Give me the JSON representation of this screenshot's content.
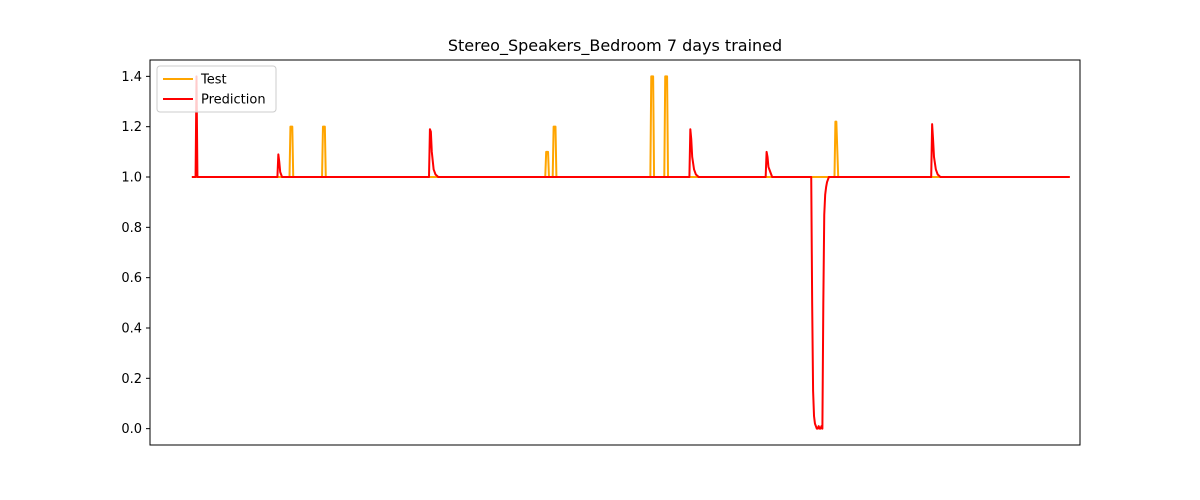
{
  "chart_data": {
    "type": "line",
    "title": "Stereo_Speakers_Bedroom 7 days trained",
    "xlabel": "",
    "ylabel": "",
    "xlim": [
      0,
      1000
    ],
    "ylim": [
      -0.065,
      1.465
    ],
    "yticks": [
      0.0,
      0.2,
      0.4,
      0.6,
      0.8,
      1.0,
      1.2,
      1.4
    ],
    "ytick_labels": [
      "0.0",
      "0.2",
      "0.4",
      "0.6",
      "0.8",
      "1.0",
      "1.2",
      "1.4"
    ],
    "grid": false,
    "legend_position": "top-left",
    "series": [
      {
        "name": "Test",
        "color": "#ffa500",
        "x": [
          45,
          150,
          151,
          153,
          154,
          155,
          185,
          186,
          188,
          189,
          190,
          425,
          426,
          428,
          429,
          430,
          433,
          434,
          436,
          437,
          438,
          538,
          539,
          541,
          542,
          543,
          553,
          554,
          556,
          557,
          558,
          734,
          735,
          736,
          737,
          738,
          740,
          741,
          742,
          989
        ],
        "y": [
          1.0,
          1.0,
          1.2,
          1.2,
          1.0,
          1.0,
          1.0,
          1.2,
          1.2,
          1.0,
          1.0,
          1.0,
          1.1,
          1.1,
          1.0,
          1.0,
          1.0,
          1.2,
          1.2,
          1.0,
          1.0,
          1.0,
          1.4,
          1.4,
          1.0,
          1.0,
          1.0,
          1.4,
          1.4,
          1.0,
          1.0,
          1.0,
          1.0,
          1.0,
          1.22,
          1.22,
          1.0,
          1.0,
          1.0,
          1.0
        ]
      },
      {
        "name": "Prediction",
        "color": "#ff0000",
        "x": [
          45,
          49,
          50,
          51,
          52,
          53,
          137,
          138,
          139,
          140,
          142,
          144,
          146,
          148,
          300,
          301,
          302,
          303,
          305,
          307,
          310,
          313,
          580,
          581,
          582,
          583,
          585,
          587,
          590,
          593,
          662,
          663,
          664,
          665,
          667,
          669,
          671,
          674,
          710,
          711,
          712,
          713,
          714,
          715,
          716,
          717,
          718,
          719,
          720,
          721,
          722,
          723,
          724,
          725,
          726,
          727,
          728,
          729,
          730,
          732,
          740,
          840,
          841,
          842,
          843,
          845,
          847,
          850,
          853,
          989
        ],
        "y": [
          1.0,
          1.0,
          1.4,
          1.0,
          1.0,
          1.0,
          1.0,
          1.09,
          1.06,
          1.02,
          1.0,
          1.0,
          1.0,
          1.0,
          1.0,
          1.19,
          1.18,
          1.1,
          1.03,
          1.01,
          1.0,
          1.0,
          1.0,
          1.19,
          1.15,
          1.08,
          1.03,
          1.01,
          1.0,
          1.0,
          1.0,
          1.1,
          1.08,
          1.04,
          1.02,
          1.0,
          1.0,
          1.0,
          1.0,
          1.0,
          0.5,
          0.15,
          0.05,
          0.02,
          0.01,
          0.0,
          0.0,
          0.01,
          0.0,
          0.0,
          0.01,
          0.0,
          0.5,
          0.85,
          0.93,
          0.96,
          0.98,
          0.99,
          1.0,
          1.0,
          1.0,
          1.0,
          1.21,
          1.15,
          1.08,
          1.03,
          1.01,
          1.0,
          1.0,
          1.0
        ]
      }
    ]
  }
}
